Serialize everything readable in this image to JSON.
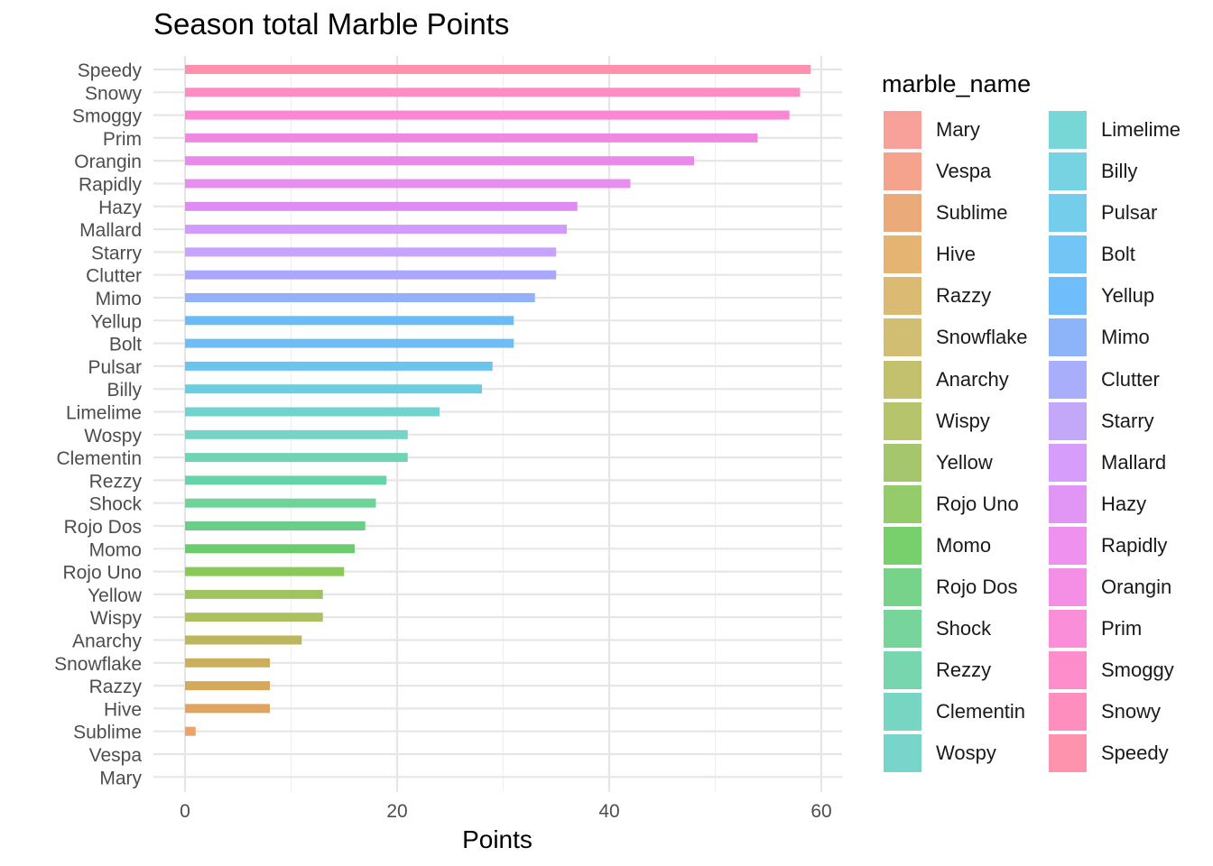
{
  "chart_data": {
    "type": "bar",
    "orientation": "horizontal",
    "title": "Season total Marble Points",
    "xlabel": "Points",
    "ylabel": "",
    "xlim": [
      -3,
      62
    ],
    "xticks": [
      0,
      20,
      40,
      60
    ],
    "grid": true,
    "legend": {
      "title": "marble_name",
      "position": "right",
      "columns": 2
    },
    "categories": [
      "Speedy",
      "Snowy",
      "Smoggy",
      "Prim",
      "Orangin",
      "Rapidly",
      "Hazy",
      "Mallard",
      "Starry",
      "Clutter",
      "Mimo",
      "Yellup",
      "Bolt",
      "Pulsar",
      "Billy",
      "Limelime",
      "Wospy",
      "Clementin",
      "Rezzy",
      "Shock",
      "Rojo Dos",
      "Momo",
      "Rojo Uno",
      "Yellow",
      "Wispy",
      "Anarchy",
      "Snowflake",
      "Razzy",
      "Hive",
      "Sublime",
      "Vespa",
      "Mary"
    ],
    "values": [
      59,
      58,
      57,
      54,
      48,
      42,
      37,
      36,
      35,
      35,
      33,
      31,
      31,
      29,
      28,
      24,
      21,
      21,
      19,
      18,
      17,
      16,
      15,
      13,
      13,
      11,
      8,
      8,
      8,
      1,
      0,
      0
    ],
    "colors": [
      "#FF8FAC",
      "#FF8CC2",
      "#FB87D4",
      "#F088E3",
      "#E98AEA",
      "#E88EF0",
      "#DE8BF5",
      "#D29AFB",
      "#C7A2FE",
      "#AAA7FD",
      "#93B1FB",
      "#6BBBF7",
      "#70BDF4",
      "#6CC4EE",
      "#6CCCE0",
      "#72D2D0",
      "#76D4C4",
      "#70D4B4",
      "#67D3A8",
      "#6FD399",
      "#6ACE88",
      "#6ECA6F",
      "#88C957",
      "#A0C360",
      "#ACC060",
      "#BDB65C",
      "#CBAF5C",
      "#D6A85B",
      "#E0A45E",
      "#EBA26C",
      "#F39F84",
      "#F6A09B"
    ],
    "legend_entries": [
      "Mary",
      "Vespa",
      "Sublime",
      "Hive",
      "Razzy",
      "Snowflake",
      "Anarchy",
      "Wispy",
      "Yellow",
      "Rojo Uno",
      "Momo",
      "Rojo Dos",
      "Shock",
      "Rezzy",
      "Clementin",
      "Wospy",
      "Limelime",
      "Billy",
      "Pulsar",
      "Bolt",
      "Yellup",
      "Mimo",
      "Clutter",
      "Starry",
      "Mallard",
      "Hazy",
      "Rapidly",
      "Orangin",
      "Prim",
      "Smoggy",
      "Snowy",
      "Speedy"
    ],
    "legend_colors": [
      "#F8A09A",
      "#F5A38C",
      "#EBAA7A",
      "#E5B473",
      "#DBBB73",
      "#D1BE73",
      "#C4C16E",
      "#B6C56C",
      "#A5C66C",
      "#94CC6C",
      "#77D06C",
      "#77D38A",
      "#77D59B",
      "#77D6AE",
      "#77D6C2",
      "#77D6C9",
      "#77D6D6",
      "#77D3E1",
      "#74CDEA",
      "#72C5F4",
      "#6FBDFB",
      "#8DB4F8",
      "#A8AEFA",
      "#C3A8FA",
      "#D69EFA",
      "#E196F5",
      "#EF91EE",
      "#F58EE5",
      "#FA8ED9",
      "#FD8ECB",
      "#FE8EBD",
      "#FE93AE"
    ]
  }
}
